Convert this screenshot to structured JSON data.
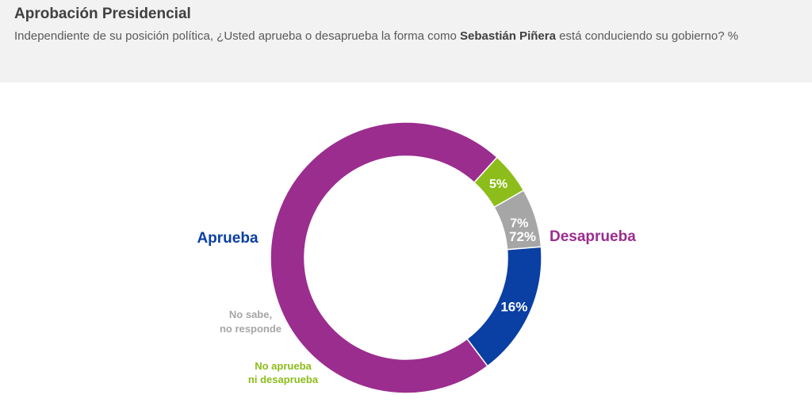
{
  "header": {
    "title": "Aprobación Presidencial",
    "subtitle_part1": "Independiente de su posición política, ¿Usted aprueba o desaprueba la forma como ",
    "subtitle_bold": "Sebastián Piñera",
    "subtitle_part2": " está conduciendo su gobierno? %"
  },
  "chart_data": {
    "type": "pie",
    "subtype": "donut",
    "title": "Aprobación Presidencial",
    "categories": [
      "Desaprueba",
      "Ni aprueba ni desaprueba",
      "No sabe, no responde",
      "Aprueba"
    ],
    "slices": [
      {
        "label_lines": [
          "Desaprueba"
        ],
        "value": 72,
        "value_label": "72%",
        "color": "#9b2d8f",
        "label_color": "#9b2d8f"
      },
      {
        "label_lines": [
          "No aprueba",
          "ni desaprueba"
        ],
        "value": 5,
        "value_label": "5%",
        "color": "#8cbd1a",
        "label_color": "#8cbd1a"
      },
      {
        "label_lines": [
          "No sabe,",
          "no responde"
        ],
        "value": 7,
        "value_label": "7%",
        "color": "#a6a6a6",
        "label_color": "#a6a6a6"
      },
      {
        "label_lines": [
          "Aprueba"
        ],
        "value": 16,
        "value_label": "16%",
        "color": "#0a3fa3",
        "label_color": "#0a3fa3"
      }
    ],
    "start_angle_deg": 143,
    "direction": "clockwise",
    "legend": "none"
  }
}
